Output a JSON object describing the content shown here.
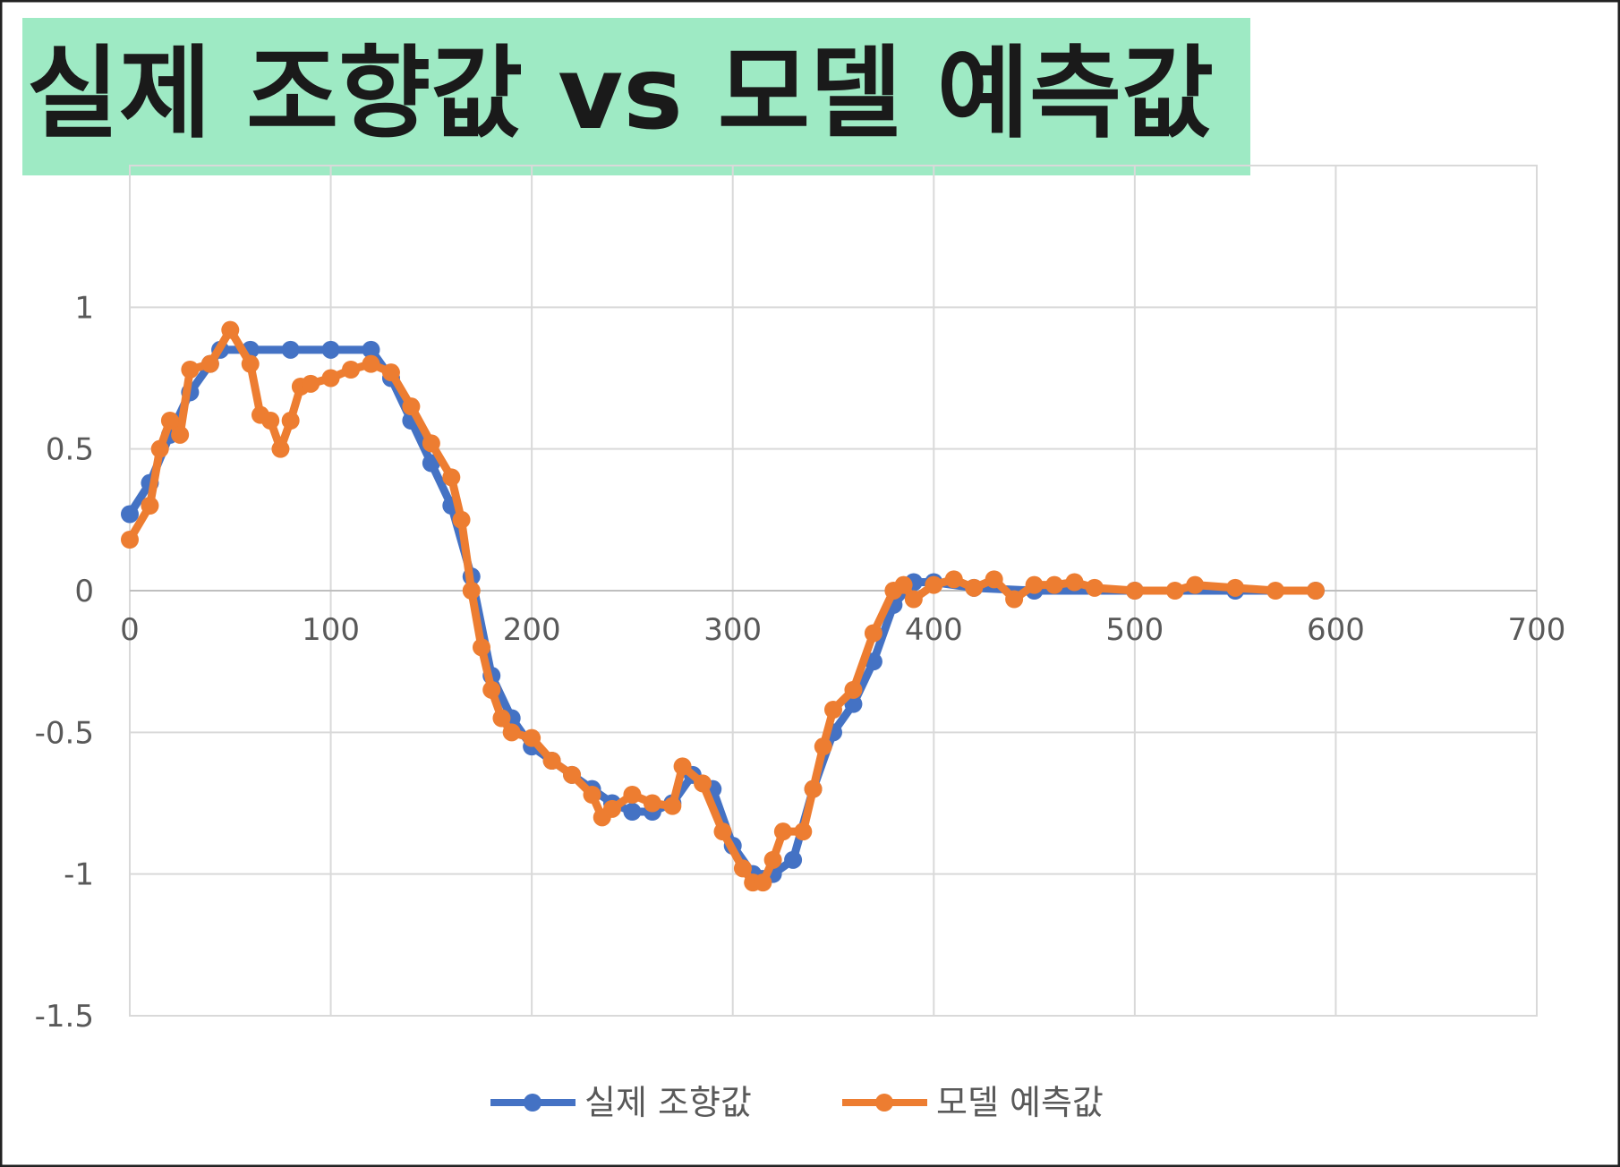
{
  "chart_data": {
    "type": "line",
    "title": "실제 조향값 vs 모델 예측값",
    "title_background": "#9eeac4",
    "xlim": [
      0,
      700
    ],
    "xticks": [
      0,
      100,
      200,
      300,
      400,
      500,
      600,
      700
    ],
    "ylim": [
      -1.5,
      1.5
    ],
    "yticks": [
      -1.5,
      -1,
      -0.5,
      0,
      0.5,
      1
    ],
    "grid": true,
    "legend": "bottom",
    "series": [
      {
        "name": "실제 조향값",
        "color": "#4472c4",
        "x": [
          0,
          10,
          20,
          30,
          40,
          45,
          60,
          80,
          100,
          120,
          130,
          140,
          150,
          160,
          170,
          180,
          190,
          200,
          210,
          220,
          230,
          240,
          250,
          260,
          270,
          280,
          290,
          300,
          310,
          320,
          330,
          340,
          350,
          360,
          370,
          380,
          390,
          400,
          420,
          450,
          500,
          550,
          590
        ],
        "values": [
          0.27,
          0.38,
          0.55,
          0.7,
          0.8,
          0.85,
          0.85,
          0.85,
          0.85,
          0.85,
          0.75,
          0.6,
          0.45,
          0.3,
          0.05,
          -0.3,
          -0.45,
          -0.55,
          -0.6,
          -0.65,
          -0.7,
          -0.75,
          -0.78,
          -0.78,
          -0.75,
          -0.65,
          -0.7,
          -0.9,
          -1.0,
          -1.0,
          -0.95,
          -0.7,
          -0.5,
          -0.4,
          -0.25,
          -0.05,
          0.03,
          0.03,
          0.01,
          0.0,
          0.0,
          0.0,
          0.0
        ]
      },
      {
        "name": "모델 예측값",
        "color": "#ed7d31",
        "x": [
          0,
          10,
          15,
          20,
          25,
          30,
          40,
          50,
          60,
          65,
          70,
          75,
          80,
          85,
          90,
          100,
          110,
          120,
          130,
          140,
          150,
          160,
          165,
          170,
          175,
          180,
          185,
          190,
          200,
          210,
          220,
          230,
          235,
          240,
          250,
          260,
          270,
          275,
          285,
          295,
          305,
          310,
          315,
          320,
          325,
          335,
          340,
          345,
          350,
          360,
          370,
          380,
          385,
          390,
          400,
          410,
          420,
          430,
          440,
          450,
          460,
          470,
          480,
          500,
          520,
          530,
          550,
          570,
          590
        ],
        "values": [
          0.18,
          0.3,
          0.5,
          0.6,
          0.55,
          0.78,
          0.8,
          0.92,
          0.8,
          0.62,
          0.6,
          0.5,
          0.6,
          0.72,
          0.73,
          0.75,
          0.78,
          0.8,
          0.77,
          0.65,
          0.52,
          0.4,
          0.25,
          0.0,
          -0.2,
          -0.35,
          -0.45,
          -0.5,
          -0.52,
          -0.6,
          -0.65,
          -0.72,
          -0.8,
          -0.77,
          -0.72,
          -0.75,
          -0.76,
          -0.62,
          -0.68,
          -0.85,
          -0.98,
          -1.03,
          -1.03,
          -0.95,
          -0.85,
          -0.85,
          -0.7,
          -0.55,
          -0.42,
          -0.35,
          -0.15,
          0.0,
          0.02,
          -0.03,
          0.02,
          0.04,
          0.01,
          0.04,
          -0.03,
          0.02,
          0.02,
          0.03,
          0.01,
          0.0,
          0.0,
          0.02,
          0.01,
          0.0,
          0.0
        ]
      }
    ]
  }
}
